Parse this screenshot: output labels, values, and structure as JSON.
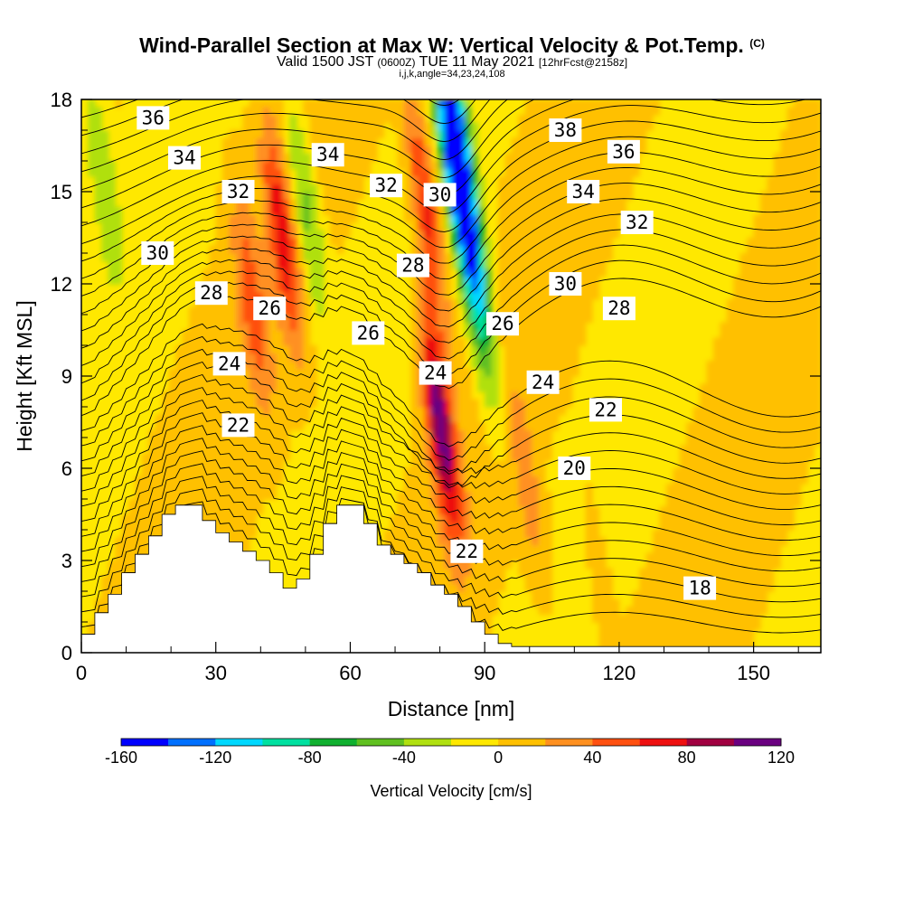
{
  "header": {
    "title": "Wind-Parallel Section at Max W: Vertical Velocity & Pot.Temp.",
    "copyright": "(C)",
    "valid_prefix": "Valid 1500 JST",
    "valid_utc": "(0600Z)",
    "valid_date": "TUE 11 May 2021",
    "forecast": "[12hrFcst@2158z]",
    "indices": "i,j,k,angle=34,23,24,108"
  },
  "chart_data": {
    "type": "heatmap",
    "title": "Wind-Parallel Section at Max W: Vertical Velocity & Pot.Temp.",
    "xlabel": "Distance [nm]",
    "ylabel": "Height [Kft MSL]",
    "xlim": [
      0,
      165
    ],
    "ylim": [
      0,
      18
    ],
    "x_ticks": [
      "0",
      "30",
      "60",
      "90",
      "120",
      "150"
    ],
    "y_ticks": [
      "0",
      "3",
      "6",
      "9",
      "12",
      "15",
      "18"
    ],
    "colorbar": {
      "label": "Vertical Velocity [cm/s]",
      "levels": [
        -160,
        -140,
        -120,
        -100,
        -80,
        -60,
        -40,
        -20,
        0,
        20,
        40,
        60,
        80,
        100,
        120
      ],
      "tick_labels": [
        "-160",
        "-120",
        "-80",
        "-40",
        "0",
        "40",
        "80",
        "120"
      ],
      "colors": [
        "#0000ff",
        "#0070ff",
        "#00d8ff",
        "#00e0a0",
        "#10b030",
        "#60c020",
        "#b0e010",
        "#ffe800",
        "#ffc000",
        "#ff9020",
        "#ff5010",
        "#ee1010",
        "#a00040",
        "#6a0080"
      ]
    },
    "terrain_kft": [
      [
        0,
        0.6
      ],
      [
        3,
        1.3
      ],
      [
        6,
        1.9
      ],
      [
        9,
        2.6
      ],
      [
        12,
        3.2
      ],
      [
        15,
        3.8
      ],
      [
        18,
        4.5
      ],
      [
        21,
        4.8
      ],
      [
        24,
        4.8
      ],
      [
        27,
        4.3
      ],
      [
        30,
        3.9
      ],
      [
        33,
        3.6
      ],
      [
        36,
        3.3
      ],
      [
        39,
        3.0
      ],
      [
        42,
        2.6
      ],
      [
        45,
        2.1
      ],
      [
        48,
        2.4
      ],
      [
        51,
        3.2
      ],
      [
        54,
        4.2
      ],
      [
        57,
        4.8
      ],
      [
        60,
        4.8
      ],
      [
        63,
        4.2
      ],
      [
        66,
        3.5
      ],
      [
        69,
        3.2
      ],
      [
        72,
        2.9
      ],
      [
        75,
        2.6
      ],
      [
        78,
        2.2
      ],
      [
        81,
        1.9
      ],
      [
        84,
        1.5
      ],
      [
        87,
        1.0
      ],
      [
        90,
        0.6
      ],
      [
        93,
        0.3
      ],
      [
        96,
        0.2
      ],
      [
        165,
        0.2
      ]
    ],
    "w_cells_cm_s": [
      {
        "x": 80,
        "z": 7.5,
        "w": 110
      },
      {
        "x": 77,
        "z": 14.5,
        "w": 75
      },
      {
        "x": 45,
        "z": 13.5,
        "w": 70
      },
      {
        "x": 38,
        "z": 11.5,
        "w": 45
      },
      {
        "x": 83,
        "z": 16.8,
        "w": -150
      },
      {
        "x": 86,
        "z": 14.0,
        "w": -90
      },
      {
        "x": 89,
        "z": 11.0,
        "w": -50
      },
      {
        "x": 50,
        "z": 14.5,
        "w": -55
      },
      {
        "x": 4,
        "z": 16.0,
        "w": -40
      },
      {
        "x": 100,
        "z": 5.0,
        "w": 30
      },
      {
        "x": 115,
        "z": 3.0,
        "w": 15
      }
    ],
    "isentrope_labels": [
      {
        "value": "36",
        "x": 16,
        "z": 17.4
      },
      {
        "value": "34",
        "x": 23,
        "z": 16.1
      },
      {
        "value": "32",
        "x": 35,
        "z": 15.0
      },
      {
        "value": "30",
        "x": 17,
        "z": 13.0
      },
      {
        "value": "28",
        "x": 29,
        "z": 11.7
      },
      {
        "value": "26",
        "x": 42,
        "z": 11.2
      },
      {
        "value": "24",
        "x": 33,
        "z": 9.4
      },
      {
        "value": "22",
        "x": 35,
        "z": 7.4
      },
      {
        "value": "34",
        "x": 55,
        "z": 16.2
      },
      {
        "value": "32",
        "x": 68,
        "z": 15.2
      },
      {
        "value": "30",
        "x": 80,
        "z": 14.9
      },
      {
        "value": "28",
        "x": 74,
        "z": 12.6
      },
      {
        "value": "26",
        "x": 64,
        "z": 10.4
      },
      {
        "value": "24",
        "x": 79,
        "z": 9.1
      },
      {
        "value": "22",
        "x": 86,
        "z": 3.3
      },
      {
        "value": "38",
        "x": 108,
        "z": 17.0
      },
      {
        "value": "36",
        "x": 121,
        "z": 16.3
      },
      {
        "value": "34",
        "x": 112,
        "z": 15.0
      },
      {
        "value": "32",
        "x": 124,
        "z": 14.0
      },
      {
        "value": "30",
        "x": 108,
        "z": 12.0
      },
      {
        "value": "28",
        "x": 120,
        "z": 11.2
      },
      {
        "value": "26",
        "x": 94,
        "z": 10.7
      },
      {
        "value": "24",
        "x": 103,
        "z": 8.8
      },
      {
        "value": "22",
        "x": 117,
        "z": 7.9
      },
      {
        "value": "20",
        "x": 110,
        "z": 6.0
      },
      {
        "value": "18",
        "x": 138,
        "z": 2.1
      }
    ]
  }
}
